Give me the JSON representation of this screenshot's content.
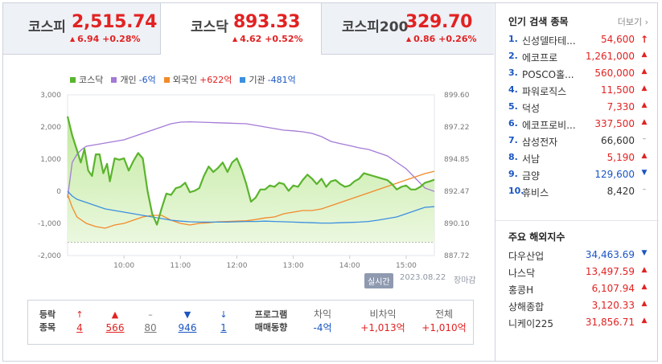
{
  "tabs": [
    {
      "name": "코스피",
      "value": "2,515.74",
      "change": "6.94 +0.28%",
      "active": false
    },
    {
      "name": "코스닥",
      "value": "893.33",
      "change": "4.62 +0.52%",
      "active": true
    },
    {
      "name": "코스피200",
      "value": "329.70",
      "change": "0.86 +0.26%",
      "active": false
    }
  ],
  "legend": [
    {
      "name": "코스닥",
      "value": "",
      "color": "#5ab42d",
      "tone": ""
    },
    {
      "name": "개인",
      "value": "-6억",
      "color": "#a47ad6",
      "tone": "neg"
    },
    {
      "name": "외국인",
      "value": "+622억",
      "color": "#f28a2a",
      "tone": "pos"
    },
    {
      "name": "기관",
      "value": "-481억",
      "color": "#3c8fe0",
      "tone": "neg"
    }
  ],
  "chart_data": {
    "type": "line",
    "x_ticks": [
      "10:00",
      "11:00",
      "12:00",
      "13:00",
      "14:00",
      "15:00"
    ],
    "left_ticks": [
      "3,000",
      "2,000",
      "1,000",
      "0",
      "-1,000",
      "-2,000"
    ],
    "right_ticks": [
      "899.60",
      "897.22",
      "894.85",
      "892.47",
      "890.10",
      "887.72"
    ],
    "left_axis": {
      "unit": "억",
      "min": -2000,
      "max": 3000
    },
    "right_axis": {
      "min": 887.72,
      "max": 899.6
    },
    "reference_line_right": 888.7,
    "time_range": [
      "09:00",
      "15:30"
    ],
    "series": [
      {
        "name": "코스닥",
        "axis": "right",
        "color": "#5ab42d",
        "fill": true,
        "t": [
          "09:00",
          "09:05",
          "09:10",
          "09:14",
          "09:18",
          "09:22",
          "09:26",
          "09:30",
          "09:34",
          "09:38",
          "09:42",
          "09:45",
          "09:50",
          "09:55",
          "10:00",
          "10:05",
          "10:10",
          "10:15",
          "10:20",
          "10:25",
          "10:30",
          "10:35",
          "10:40",
          "10:45",
          "10:50",
          "10:55",
          "11:00",
          "11:05",
          "11:10",
          "11:15",
          "11:20",
          "11:25",
          "11:30",
          "11:35",
          "11:40",
          "11:45",
          "11:50",
          "11:55",
          "12:00",
          "12:05",
          "12:10",
          "12:15",
          "12:20",
          "12:25",
          "12:30",
          "12:35",
          "12:40",
          "12:45",
          "12:50",
          "12:55",
          "13:00",
          "13:05",
          "13:10",
          "13:15",
          "13:20",
          "13:25",
          "13:30",
          "13:35",
          "13:40",
          "13:45",
          "13:50",
          "13:55",
          "14:00",
          "14:05",
          "14:10",
          "14:15",
          "14:20",
          "14:25",
          "14:30",
          "14:35",
          "14:40",
          "14:45",
          "14:50",
          "14:55",
          "15:00",
          "15:05",
          "15:10",
          "15:15",
          "15:20",
          "15:25",
          "15:30"
        ],
        "v": [
          898.0,
          896.6,
          895.5,
          894.6,
          895.6,
          894.0,
          893.6,
          895.2,
          895.2,
          893.8,
          894.5,
          893.2,
          894.9,
          894.8,
          894.9,
          894.0,
          894.7,
          895.3,
          894.9,
          892.5,
          890.8,
          890.0,
          891.2,
          892.3,
          892.2,
          892.7,
          892.8,
          893.1,
          892.4,
          892.5,
          892.7,
          893.6,
          894.3,
          893.9,
          894.2,
          894.6,
          893.9,
          894.6,
          894.9,
          894.1,
          893.0,
          891.7,
          892.0,
          892.6,
          892.6,
          892.9,
          892.8,
          893.1,
          893.0,
          892.5,
          892.9,
          892.8,
          893.3,
          893.7,
          893.4,
          893.0,
          893.4,
          892.8,
          893.2,
          893.3,
          893.0,
          892.8,
          892.9,
          893.2,
          893.4,
          893.8,
          893.7,
          893.6,
          893.5,
          893.4,
          893.3,
          893.0,
          892.6,
          892.8,
          892.9,
          892.6,
          892.6,
          892.8,
          893.1,
          893.2,
          893.33
        ]
      },
      {
        "name": "개인",
        "axis": "left",
        "color": "#a47ad6",
        "fill": false,
        "t": [
          "09:00",
          "09:05",
          "09:10",
          "09:15",
          "09:20",
          "09:30",
          "09:40",
          "09:50",
          "10:00",
          "10:10",
          "10:20",
          "10:30",
          "10:40",
          "10:50",
          "11:00",
          "11:10",
          "11:20",
          "11:30",
          "11:40",
          "11:50",
          "12:00",
          "12:10",
          "12:20",
          "12:30",
          "12:40",
          "12:50",
          "13:00",
          "13:10",
          "13:20",
          "13:30",
          "13:40",
          "13:50",
          "14:00",
          "14:10",
          "14:20",
          "14:30",
          "14:40",
          "14:50",
          "15:00",
          "15:10",
          "15:20",
          "15:30"
        ],
        "v": [
          -200,
          900,
          1150,
          1300,
          1400,
          1450,
          1500,
          1550,
          1600,
          1700,
          1800,
          1900,
          2000,
          2100,
          2150,
          2160,
          2150,
          2140,
          2130,
          2120,
          2110,
          2100,
          2050,
          2000,
          1950,
          1900,
          1880,
          1850,
          1800,
          1700,
          1550,
          1480,
          1420,
          1350,
          1300,
          1200,
          1100,
          900,
          700,
          400,
          100,
          -6
        ]
      },
      {
        "name": "외국인",
        "axis": "left",
        "color": "#f28a2a",
        "fill": false,
        "t": [
          "09:00",
          "09:05",
          "09:10",
          "09:15",
          "09:20",
          "09:30",
          "09:40",
          "09:50",
          "10:00",
          "10:10",
          "10:20",
          "10:30",
          "10:40",
          "10:50",
          "11:00",
          "11:10",
          "11:20",
          "11:30",
          "11:40",
          "11:50",
          "12:00",
          "12:10",
          "12:20",
          "12:30",
          "12:40",
          "12:50",
          "13:00",
          "13:10",
          "13:20",
          "13:30",
          "13:40",
          "13:50",
          "14:00",
          "14:10",
          "14:20",
          "14:30",
          "14:40",
          "14:50",
          "15:00",
          "15:10",
          "15:20",
          "15:30"
        ],
        "v": [
          -100,
          -500,
          -800,
          -900,
          -1000,
          -1100,
          -1150,
          -1050,
          -1000,
          -900,
          -800,
          -750,
          -750,
          -900,
          -1000,
          -1050,
          -1000,
          -980,
          -950,
          -940,
          -930,
          -920,
          -880,
          -830,
          -800,
          -700,
          -650,
          -600,
          -600,
          -550,
          -450,
          -350,
          -250,
          -150,
          -50,
          50,
          150,
          250,
          350,
          450,
          550,
          622
        ]
      },
      {
        "name": "기관",
        "axis": "left",
        "color": "#3c8fe0",
        "fill": false,
        "t": [
          "09:00",
          "09:05",
          "09:10",
          "09:15",
          "09:20",
          "09:30",
          "09:40",
          "09:50",
          "10:00",
          "10:10",
          "10:20",
          "10:30",
          "10:40",
          "10:50",
          "11:00",
          "11:10",
          "11:20",
          "11:30",
          "11:40",
          "11:50",
          "12:00",
          "12:10",
          "12:20",
          "12:30",
          "12:40",
          "12:50",
          "13:00",
          "13:10",
          "13:20",
          "13:30",
          "13:40",
          "13:50",
          "14:00",
          "14:10",
          "14:20",
          "14:30",
          "14:40",
          "14:50",
          "15:00",
          "15:10",
          "15:20",
          "15:30"
        ],
        "v": [
          0,
          -150,
          -250,
          -300,
          -350,
          -450,
          -550,
          -600,
          -650,
          -700,
          -750,
          -800,
          -850,
          -900,
          -930,
          -950,
          -960,
          -960,
          -960,
          -960,
          -950,
          -940,
          -940,
          -930,
          -940,
          -950,
          -960,
          -970,
          -980,
          -990,
          -990,
          -980,
          -970,
          -960,
          -940,
          -900,
          -850,
          -800,
          -700,
          -600,
          -500,
          -481
        ]
      }
    ]
  },
  "realtime": {
    "badge": "실시간",
    "datetime": "2023.08.22",
    "status": "장마감"
  },
  "stats": {
    "title_line1": "등락",
    "title_line2": "종목",
    "counts": [
      {
        "icon": "↑",
        "value": "4",
        "tone": "red"
      },
      {
        "icon": "▲",
        "value": "566",
        "tone": "red"
      },
      {
        "icon": "–",
        "value": "80",
        "tone": "gray"
      },
      {
        "icon": "▼",
        "value": "946",
        "tone": "blue"
      },
      {
        "icon": "↓",
        "value": "1",
        "tone": "blue"
      }
    ],
    "program_line1": "프로그램",
    "program_line2": "매매동향",
    "program": [
      {
        "label": "차익",
        "value": "-4억",
        "tone": "blue"
      },
      {
        "label": "비차익",
        "value": "+1,013억",
        "tone": "red"
      },
      {
        "label": "전체",
        "value": "+1,010억",
        "tone": "red"
      }
    ]
  },
  "popular": {
    "title": "인기 검색 종목",
    "more": "더보기",
    "items": [
      {
        "rank": "1.",
        "name": "신성델타테...",
        "price": "54,600",
        "dir": "bigup"
      },
      {
        "rank": "2.",
        "name": "에코프로",
        "price": "1,261,000",
        "dir": "up"
      },
      {
        "rank": "3.",
        "name": "POSCO홀...",
        "price": "560,000",
        "dir": "up"
      },
      {
        "rank": "4.",
        "name": "파워로직스",
        "price": "11,500",
        "dir": "up"
      },
      {
        "rank": "5.",
        "name": "덕성",
        "price": "7,330",
        "dir": "up"
      },
      {
        "rank": "6.",
        "name": "에코프로비...",
        "price": "337,500",
        "dir": "up"
      },
      {
        "rank": "7.",
        "name": "삼성전자",
        "price": "66,600",
        "dir": "flat"
      },
      {
        "rank": "8.",
        "name": "서남",
        "price": "5,190",
        "dir": "up"
      },
      {
        "rank": "9.",
        "name": "금양",
        "price": "129,600",
        "dir": "down"
      },
      {
        "rank": "10.",
        "name": "휴비스",
        "price": "8,420",
        "dir": "flat"
      }
    ]
  },
  "world": {
    "title": "주요 해외지수",
    "items": [
      {
        "name": "다우산업",
        "price": "34,463.69",
        "dir": "down"
      },
      {
        "name": "나스닥",
        "price": "13,497.59",
        "dir": "up"
      },
      {
        "name": "홍콩H",
        "price": "6,107.94",
        "dir": "up"
      },
      {
        "name": "상해종합",
        "price": "3,120.33",
        "dir": "up"
      },
      {
        "name": "니케이225",
        "price": "31,856.71",
        "dir": "up"
      }
    ]
  },
  "colors": {
    "up": "#e22222",
    "down": "#1a55c4",
    "flat": "#555555"
  }
}
